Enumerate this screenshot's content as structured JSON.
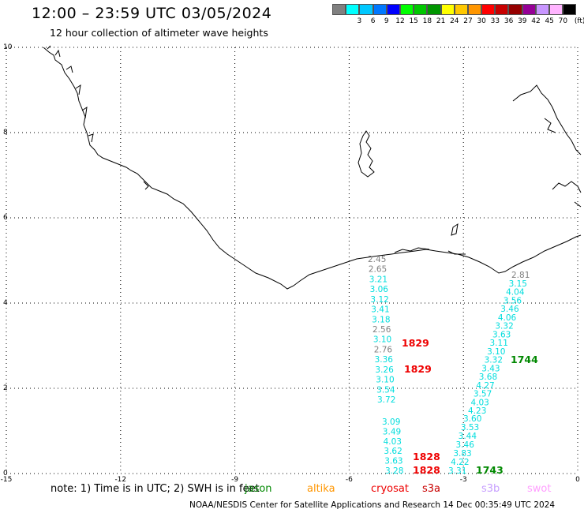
{
  "header": {
    "title": "12:00 – 23:59 UTC 03/05/2024",
    "subtitle": "12 hour collection of altimeter wave heights"
  },
  "legend": {
    "unit": "(ft)",
    "bins": [
      {
        "label": "",
        "color": "#808080"
      },
      {
        "label": "3",
        "color": "#00ffff"
      },
      {
        "label": "6",
        "color": "#00c8ff"
      },
      {
        "label": "9",
        "color": "#0078ff"
      },
      {
        "label": "12",
        "color": "#0000ff"
      },
      {
        "label": "15",
        "color": "#00ff00"
      },
      {
        "label": "18",
        "color": "#00c800"
      },
      {
        "label": "21",
        "color": "#009600"
      },
      {
        "label": "24",
        "color": "#ffff00"
      },
      {
        "label": "27",
        "color": "#ffc800"
      },
      {
        "label": "30",
        "color": "#ff9600"
      },
      {
        "label": "33",
        "color": "#ff0000"
      },
      {
        "label": "36",
        "color": "#c80000"
      },
      {
        "label": "39",
        "color": "#960000"
      },
      {
        "label": "42",
        "color": "#960096"
      },
      {
        "label": "45",
        "color": "#c896ff"
      },
      {
        "label": "70",
        "color": "#ffb4ff"
      },
      {
        "label": "",
        "color": "#000000"
      }
    ]
  },
  "axes": {
    "x_ticks": [
      "-15",
      "-12",
      "-9",
      "-6",
      "-3",
      "0"
    ],
    "y_ticks": [
      "0",
      "2",
      "4",
      "6",
      "8",
      "10"
    ],
    "xlim": [
      -15,
      0
    ],
    "ylim": [
      0,
      10
    ]
  },
  "tracks": [
    {
      "satellite": "cryosat",
      "pass_time": "1829",
      "color": "#00dddd",
      "values": [
        {
          "text": "2.45",
          "color": "#808080"
        },
        {
          "text": "2.65",
          "color": "#808080"
        },
        {
          "text": "3.21",
          "color": "#00dddd"
        },
        {
          "text": "3.06",
          "color": "#00dddd"
        },
        {
          "text": "3.12",
          "color": "#00dddd"
        },
        {
          "text": "3.41",
          "color": "#00dddd"
        },
        {
          "text": "3.18",
          "color": "#00dddd"
        },
        {
          "text": "2.56",
          "color": "#808080"
        },
        {
          "text": "3.10",
          "color": "#00dddd"
        },
        {
          "text": "2.76",
          "color": "#808080"
        },
        {
          "text": "3.36",
          "color": "#00dddd"
        },
        {
          "text": "3.26",
          "color": "#00dddd"
        },
        {
          "text": "3.10",
          "color": "#00dddd"
        },
        {
          "text": "3.54",
          "color": "#00dddd"
        },
        {
          "text": "3.72",
          "color": "#00dddd"
        }
      ]
    },
    {
      "satellite": "cryosat",
      "pass_time": "1828",
      "color": "#00dddd",
      "values": [
        {
          "text": "3.09",
          "color": "#00dddd"
        },
        {
          "text": "3.49",
          "color": "#00dddd"
        },
        {
          "text": "4.03",
          "color": "#00dddd"
        },
        {
          "text": "3.62",
          "color": "#00dddd"
        },
        {
          "text": "3.63",
          "color": "#00dddd"
        },
        {
          "text": "3.28",
          "color": "#00dddd"
        }
      ]
    },
    {
      "satellite": "jason",
      "pass_time": "1744",
      "color": "#00dddd",
      "values": [
        {
          "text": "2.81",
          "color": "#808080"
        },
        {
          "text": "3.15",
          "color": "#00dddd"
        },
        {
          "text": "4.04",
          "color": "#00dddd"
        },
        {
          "text": "3.56",
          "color": "#00dddd"
        },
        {
          "text": "3.46",
          "color": "#00dddd"
        },
        {
          "text": "4.06",
          "color": "#00dddd"
        },
        {
          "text": "3.32",
          "color": "#00dddd"
        },
        {
          "text": "3.63",
          "color": "#00dddd"
        },
        {
          "text": "3.11",
          "color": "#00dddd"
        },
        {
          "text": "3.10",
          "color": "#00dddd"
        },
        {
          "text": "3.32",
          "color": "#00dddd"
        },
        {
          "text": "3.43",
          "color": "#00dddd"
        },
        {
          "text": "3.68",
          "color": "#00dddd"
        },
        {
          "text": "4.27",
          "color": "#00dddd"
        },
        {
          "text": "3.57",
          "color": "#00dddd"
        },
        {
          "text": "4.03",
          "color": "#00dddd"
        },
        {
          "text": "4.23",
          "color": "#00dddd"
        }
      ]
    },
    {
      "satellite": "jason",
      "pass_time": "1743",
      "color": "#00dddd",
      "values": [
        {
          "text": "3.60",
          "color": "#00dddd"
        },
        {
          "text": "3.53",
          "color": "#00dddd"
        },
        {
          "text": "3.44",
          "color": "#00dddd"
        },
        {
          "text": "3.46",
          "color": "#00dddd"
        },
        {
          "text": "3.83",
          "color": "#00dddd"
        },
        {
          "text": "4.22",
          "color": "#00dddd"
        },
        {
          "text": "3.31",
          "color": "#00dddd"
        }
      ]
    }
  ],
  "pass_labels": [
    {
      "text": "1829",
      "color": "#ee0000"
    },
    {
      "text": "1829",
      "color": "#ee0000"
    },
    {
      "text": "1744",
      "color": "#008800"
    },
    {
      "text": "1828",
      "color": "#ee0000"
    },
    {
      "text": "1828",
      "color": "#ee0000"
    },
    {
      "text": "1743",
      "color": "#008800"
    }
  ],
  "footer": {
    "note_prefix": "note:  1) Time is in UTC; 2) SWH is in feet",
    "satellites": [
      {
        "name": "jason",
        "color": "#008800"
      },
      {
        "name": "altika",
        "color": "#ff9600"
      },
      {
        "name": "cryosat",
        "color": "#ee0000"
      },
      {
        "name": "s3a",
        "color": "#c80000"
      },
      {
        "name": "s3b",
        "color": "#c8a0ff"
      },
      {
        "name": "swot",
        "color": "#ffa0ff"
      }
    ],
    "credit": "NOAA/NESDIS Center for Satellite Applications and Research    14 Dec 00:35:49 UTC 2024"
  }
}
